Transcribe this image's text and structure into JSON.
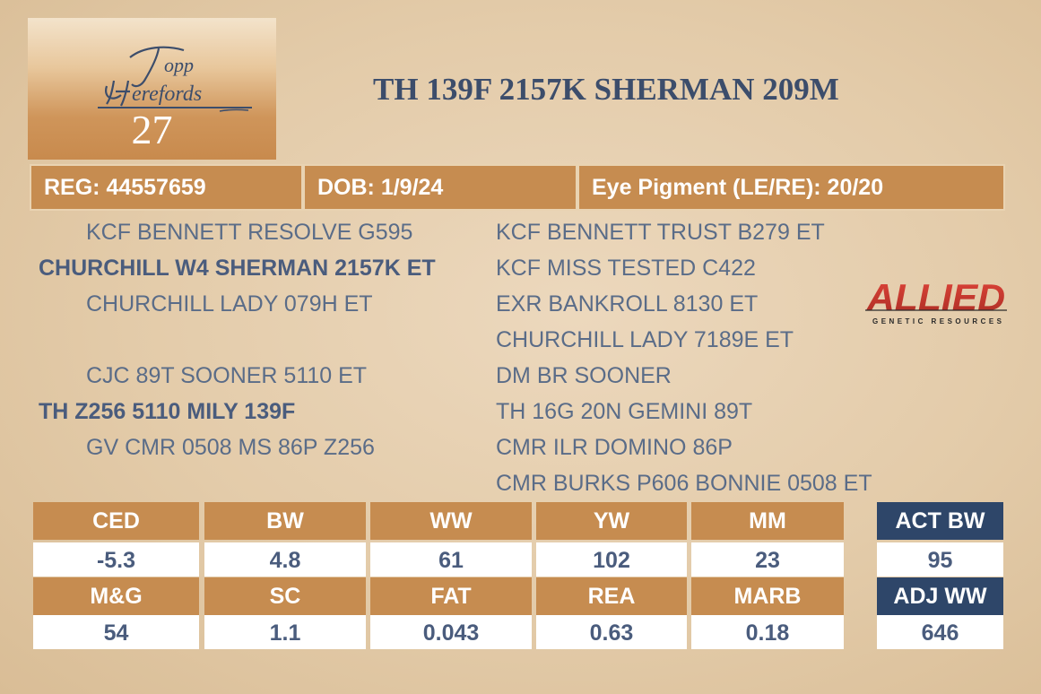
{
  "logo": {
    "text": "Topp Herefords",
    "lot_number": "27"
  },
  "title": "TH 139F 2157K SHERMAN 209M",
  "info": {
    "reg": "REG: 44557659",
    "dob": "DOB: 1/9/24",
    "eye": "Eye Pigment (LE/RE): 20/20"
  },
  "pedigree": {
    "sire_side": {
      "sire_sire": "KCF BENNETT RESOLVE G595",
      "sire": "CHURCHILL W4 SHERMAN 2157K ET",
      "sire_dam": "CHURCHILL LADY 079H ET"
    },
    "dam_side": {
      "dam_sire": "CJC 89T SOONER 5110 ET",
      "dam": "TH Z256 5110 MILY 139F",
      "dam_dam": "GV CMR 0508 MS 86P Z256"
    },
    "right_column": [
      "KCF BENNETT TRUST B279 ET",
      "KCF MISS TESTED C422",
      "EXR BANKROLL 8130 ET",
      "CHURCHILL LADY 7189E ET",
      "DM BR SOONER",
      "TH 16G 20N GEMINI 89T",
      "CMR ILR DOMINO 86P",
      "CMR BURKS P606 BONNIE 0508 ET"
    ]
  },
  "sponsor_logo": {
    "text": "ALLIED",
    "subtext": "GENETIC RESOURCES",
    "color": "#d1372b"
  },
  "epds": {
    "row1_headers": [
      "CED",
      "BW",
      "WW",
      "YW",
      "MM"
    ],
    "row1_values": [
      "-5.3",
      "4.8",
      "61",
      "102",
      "23"
    ],
    "row2_headers": [
      "M&G",
      "SC",
      "FAT",
      "REA",
      "MARB"
    ],
    "row2_values": [
      "54",
      "1.1",
      "0.043",
      "0.63",
      "0.18"
    ],
    "actual": {
      "act_bw_label": "ACT BW",
      "act_bw_value": "95",
      "adj_ww_label": "ADJ WW",
      "adj_ww_value": "646"
    }
  },
  "colors": {
    "accent": "#c68c50",
    "navy": "#2e4669",
    "text": "#4a5c7d"
  }
}
